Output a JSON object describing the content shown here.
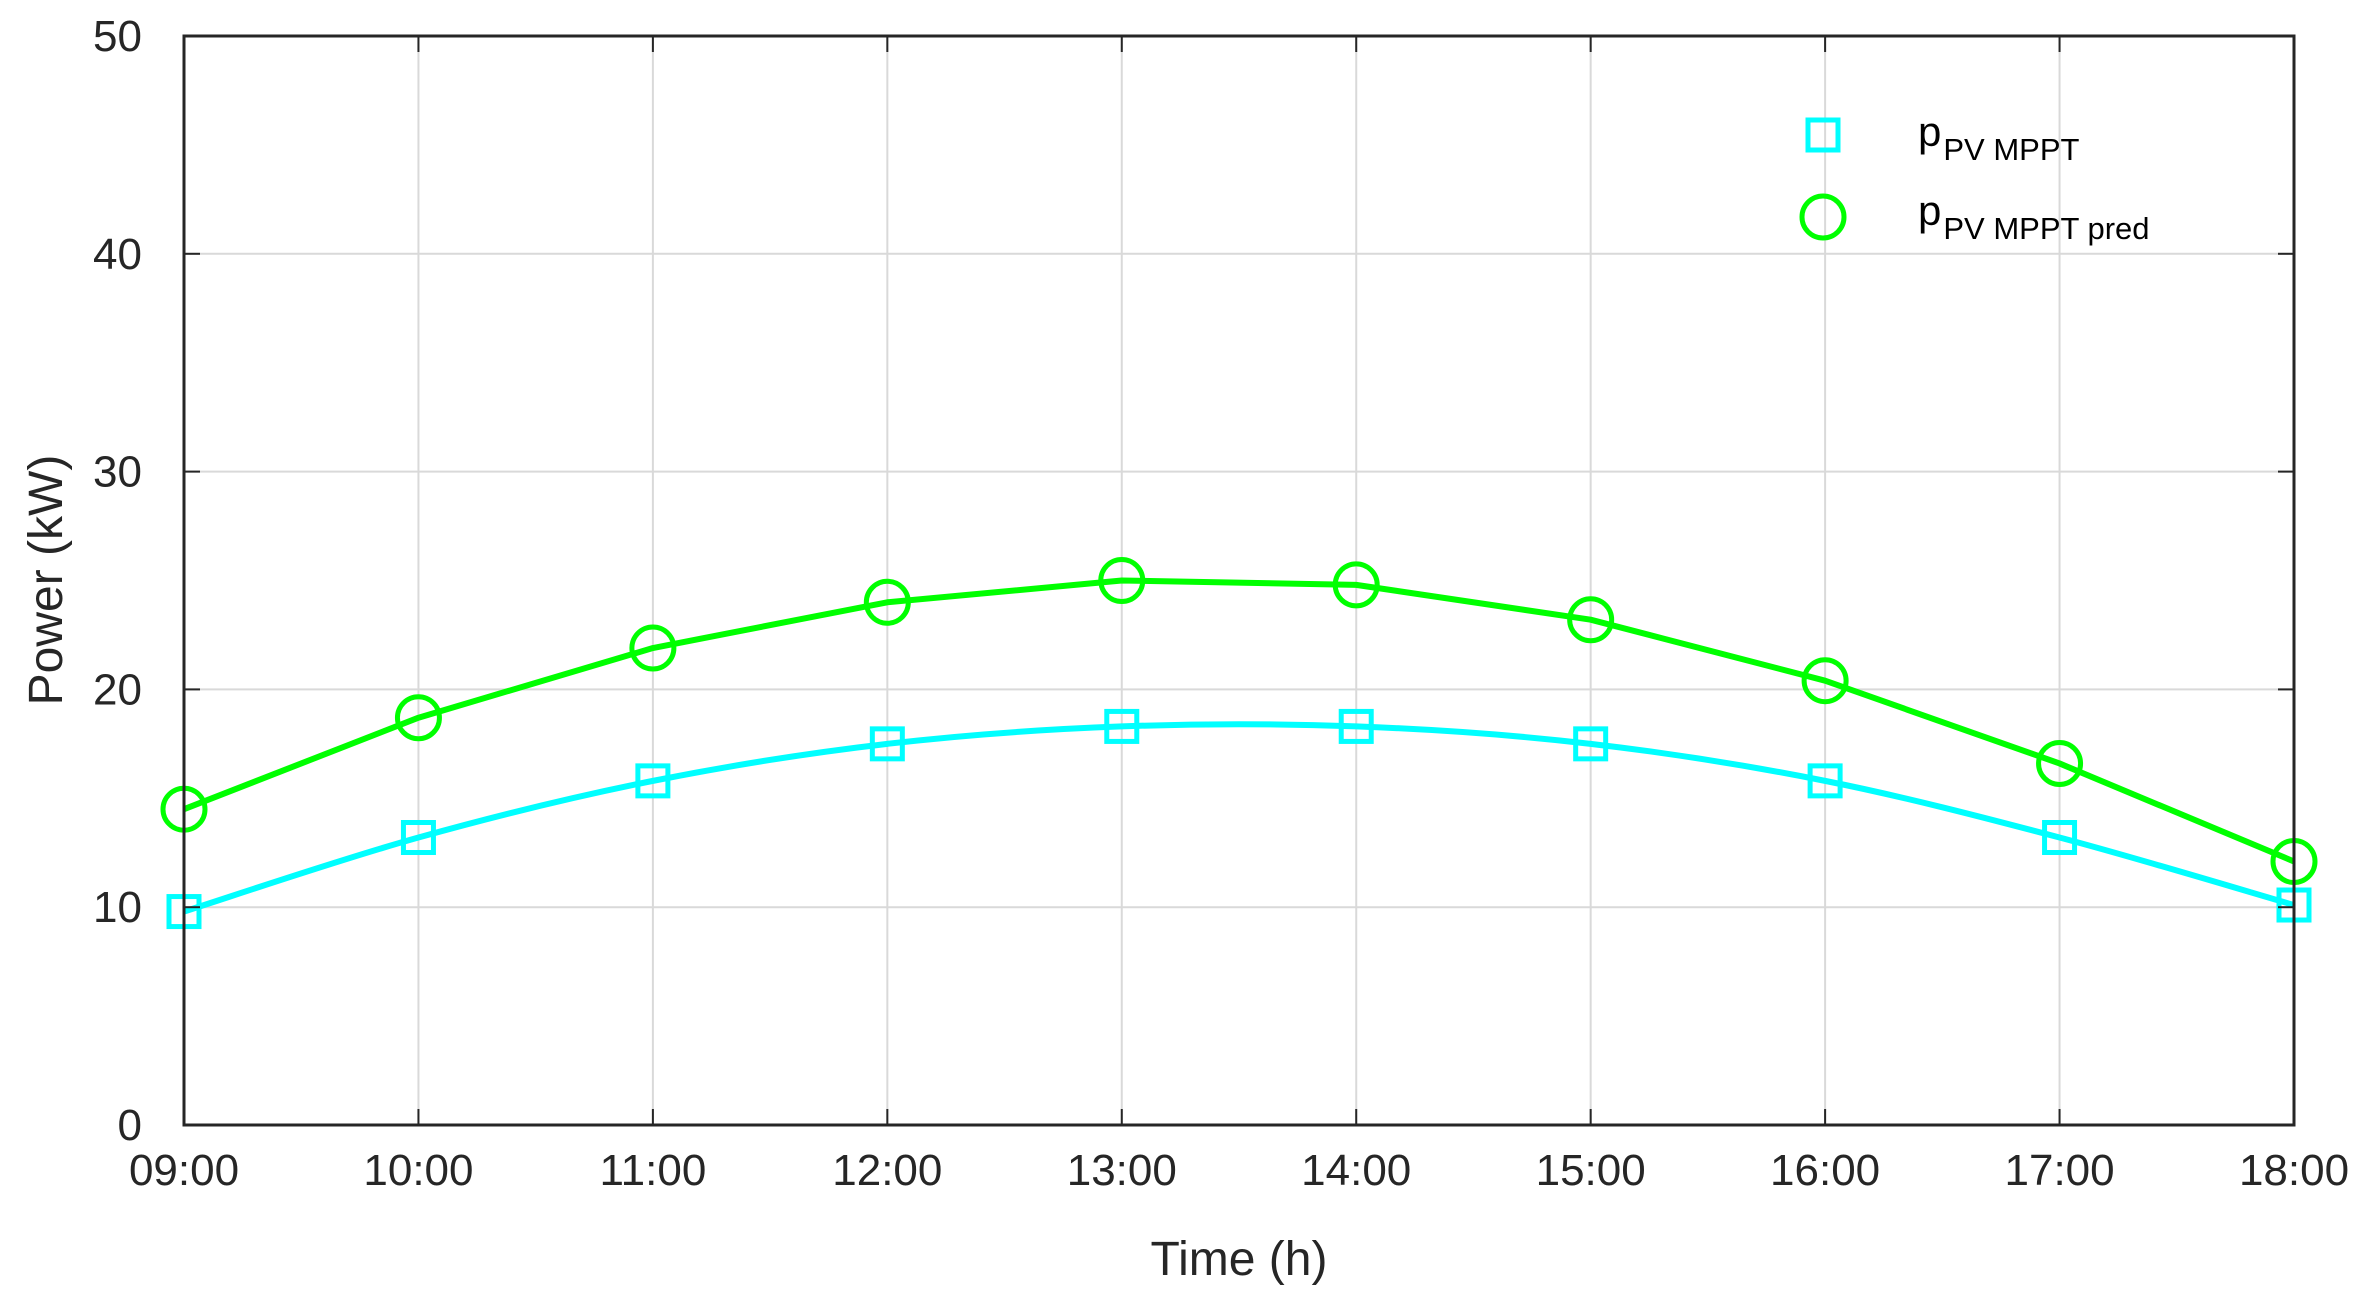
{
  "chart_data": {
    "type": "line",
    "xlabel": "Time (h)",
    "ylabel": "Power (kW)",
    "x_ticks": [
      "09:00",
      "10:00",
      "11:00",
      "12:00",
      "13:00",
      "14:00",
      "15:00",
      "16:00",
      "17:00",
      "18:00"
    ],
    "y_ticks": [
      "0",
      "10",
      "20",
      "30",
      "40",
      "50"
    ],
    "xlim": [
      "09:00",
      "18:00"
    ],
    "ylim": [
      0,
      50
    ],
    "grid": true,
    "legend_position": "top-right",
    "series": [
      {
        "name_main": "p",
        "name_sub": "PV MPPT",
        "color": "#00FFFF",
        "marker": "square",
        "x": [
          "09:00",
          "10:00",
          "11:00",
          "12:00",
          "13:00",
          "14:00",
          "15:00",
          "16:00",
          "17:00",
          "18:00"
        ],
        "values": [
          9.8,
          13.2,
          15.8,
          17.5,
          18.3,
          18.3,
          17.5,
          15.8,
          13.2,
          10.1
        ]
      },
      {
        "name_main": "p",
        "name_sub": "PV MPPT pred",
        "color": "#00FF00",
        "marker": "circle",
        "x": [
          "09:00",
          "10:00",
          "11:00",
          "12:00",
          "13:00",
          "14:00",
          "15:00",
          "16:00",
          "17:00",
          "18:00"
        ],
        "values": [
          14.5,
          18.7,
          21.9,
          24.0,
          25.0,
          24.8,
          23.2,
          20.4,
          16.6,
          12.1
        ]
      }
    ]
  }
}
